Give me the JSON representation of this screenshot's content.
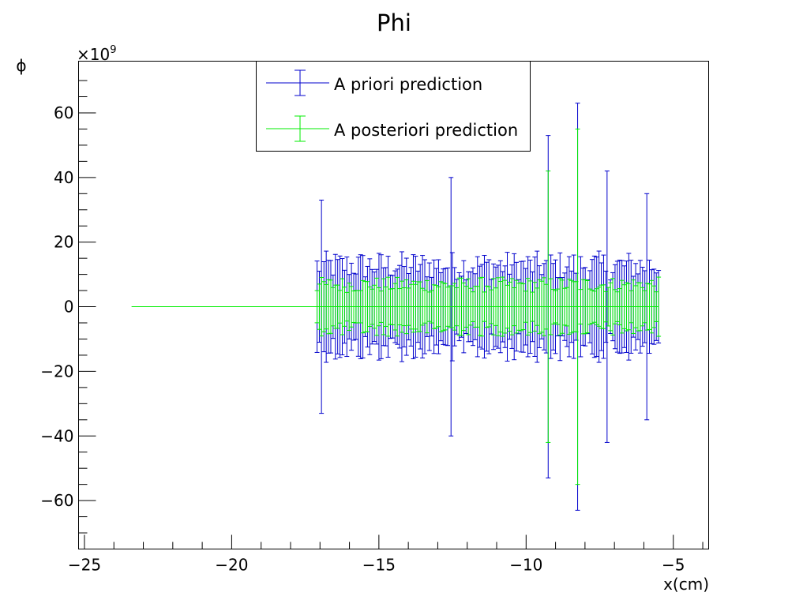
{
  "chart_data": {
    "type": "scatter",
    "title": "Phi",
    "xlabel": "x(cm)",
    "ylabel": "ϕ",
    "y_multiplier": "×10",
    "y_multiplier_exp": "9",
    "xlim": [
      -25.2,
      -3.8
    ],
    "ylim": [
      -75,
      76
    ],
    "x_ticks": [
      -25,
      -20,
      -15,
      -10,
      -5
    ],
    "x_tick_labels": [
      "−25",
      "−20",
      "−15",
      "−10",
      "−5"
    ],
    "y_ticks": [
      -60,
      -40,
      -20,
      0,
      20,
      40,
      60
    ],
    "y_tick_labels": [
      "−60",
      "−40",
      "−20",
      "0",
      "20",
      "40",
      "60"
    ],
    "legend_placement": "top-center",
    "x_range_points": [
      -17.1,
      -5.5
    ],
    "point_count": 150,
    "series": [
      {
        "name": "A priori prediction",
        "color": "#0000cc",
        "y_value": 0,
        "typical_error": 15,
        "outliers": [
          {
            "x": -16.95,
            "error": 33
          },
          {
            "x": -12.55,
            "error": 40
          },
          {
            "x": -9.25,
            "error": 53
          },
          {
            "x": -8.25,
            "error": 63
          },
          {
            "x": -7.25,
            "error": 42
          },
          {
            "x": -5.9,
            "error": 35
          }
        ]
      },
      {
        "name": "A posteriori prediction",
        "color": "#00ee00",
        "y_value": 0,
        "typical_error": 8,
        "horizontal_line_from_x": -23.4,
        "outliers": [
          {
            "x": -9.25,
            "error": 42
          },
          {
            "x": -8.25,
            "error": 55
          }
        ]
      }
    ]
  }
}
